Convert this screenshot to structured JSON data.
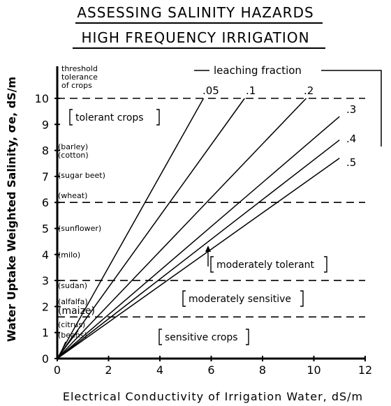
{
  "title_lines": [
    "ASSESSING SALINITY HAZARDS",
    "HIGH FREQUENCY IRRIGATION"
  ],
  "chart_data": {
    "type": "line",
    "xlabel": "Electrical Conductivity of Irrigation Water, dS/m",
    "ylabel": "Water Uptake Weighted Salinity, σe, dS/m",
    "xlim": [
      0,
      12
    ],
    "ylim": [
      0,
      10
    ],
    "x_ticks": [
      0,
      2,
      4,
      6,
      8,
      10,
      12
    ],
    "y_ticks": [
      0,
      1,
      2,
      3,
      4,
      5,
      6,
      7,
      8,
      9,
      10
    ],
    "threshold_header": [
      "threshold",
      "tolerance",
      "of crops"
    ],
    "legend_title": "leaching fraction",
    "series": [
      {
        "name": ".05",
        "x": [
          0,
          5.7
        ],
        "y": [
          0,
          10
        ]
      },
      {
        "name": ".1",
        "x": [
          0,
          7.3
        ],
        "y": [
          0,
          10
        ]
      },
      {
        "name": ".2",
        "x": [
          0,
          9.7
        ],
        "y": [
          0,
          10
        ]
      },
      {
        "name": ".3",
        "x": [
          0,
          11
        ],
        "y": [
          0,
          9.3
        ]
      },
      {
        "name": ".4",
        "x": [
          0,
          11
        ],
        "y": [
          0,
          8.4
        ]
      },
      {
        "name": ".5",
        "x": [
          0,
          11
        ],
        "y": [
          0,
          7.7
        ]
      }
    ],
    "dashed_levels": [
      10,
      6,
      3,
      1.6
    ],
    "zones": [
      "tolerant crops",
      "moderately tolerant",
      "moderately sensitive",
      "sensitive crops"
    ],
    "crop_thresholds": [
      {
        "crop": "barley",
        "y": 8.0
      },
      {
        "crop": "cotton",
        "y": 7.7
      },
      {
        "crop": "sugar beet",
        "y": 7.0
      },
      {
        "crop": "wheat",
        "y": 6.0
      },
      {
        "crop": "sunflower",
        "y": 5.0
      },
      {
        "crop": "milo",
        "y": 4.0
      },
      {
        "crop": "sudan",
        "y": 2.8
      },
      {
        "crop": "alfalfa",
        "y": 2.2
      },
      {
        "crop": "maize",
        "y": 1.8
      },
      {
        "crop": "citrus",
        "y": 1.3
      },
      {
        "crop": "beans",
        "y": 1.0
      }
    ]
  }
}
